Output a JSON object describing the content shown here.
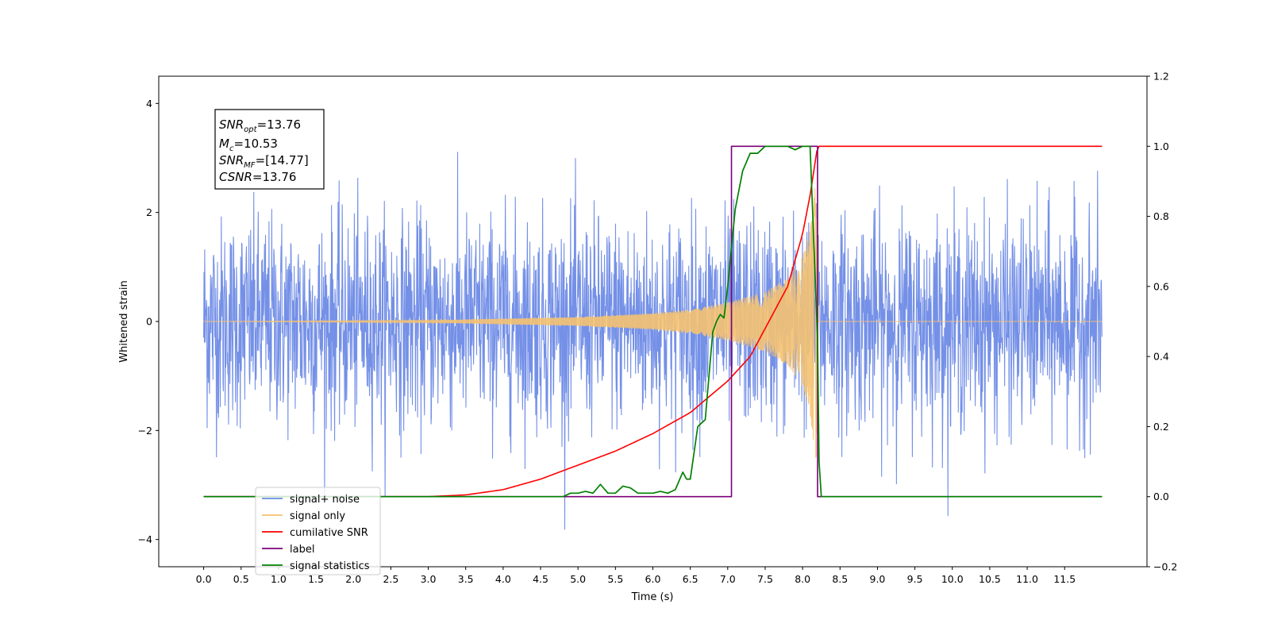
{
  "chart_data": {
    "type": "line",
    "xlabel": "Time (s)",
    "ylabel_left": "Whitened strain",
    "ylabel_right": "",
    "xlim": [
      -0.6,
      12.6
    ],
    "ylim_left": [
      -4.5,
      4.5
    ],
    "ylim_right": [
      -0.2,
      1.2
    ],
    "x_ticks": [
      "0.0",
      "0.5",
      "1.0",
      "1.5",
      "2.0",
      "2.5",
      "3.0",
      "3.5",
      "4.0",
      "4.5",
      "5.0",
      "5.5",
      "6.0",
      "6.5",
      "7.0",
      "7.5",
      "8.0",
      "8.5",
      "9.0",
      "9.5",
      "10.0",
      "10.5",
      "11.0",
      "11.5"
    ],
    "x_tick_values": [
      0,
      0.5,
      1,
      1.5,
      2,
      2.5,
      3,
      3.5,
      4,
      4.5,
      5,
      5.5,
      6,
      6.5,
      7,
      7.5,
      8,
      8.5,
      9,
      9.5,
      10,
      10.5,
      11,
      11.5
    ],
    "y_ticks_left": [
      "−4",
      "−2",
      "0",
      "2",
      "4"
    ],
    "y_tick_values_left": [
      -4,
      -2,
      0,
      2,
      4
    ],
    "y_ticks_right": [
      "−0.2",
      "0.0",
      "0.2",
      "0.4",
      "0.6",
      "0.8",
      "1.0",
      "1.2"
    ],
    "y_tick_values_right": [
      -0.2,
      0,
      0.2,
      0.4,
      0.6,
      0.8,
      1.0,
      1.2
    ],
    "grid": false,
    "legend_position": "lower-left",
    "annotation": {
      "snr_opt_base": "SNR",
      "snr_opt_sub": "opt",
      "snr_opt_value": "=13.76",
      "mc_base": "M",
      "mc_sub": "c",
      "mc_value": "=10.53",
      "snr_mf_base": "SNR",
      "snr_mf_sub": "MF",
      "snr_mf_value": "=[14.77]",
      "csnr_base": "CSNR",
      "csnr_value": "=13.76"
    },
    "series": [
      {
        "name": "signal+ noise",
        "axis": "left",
        "color": "#6d8ae6",
        "description_values": "noise band",
        "x_start": 0.0,
        "x_end": 12.0,
        "noise_sigma": 1.0,
        "noise_max": 4.1
      },
      {
        "name": "signal only",
        "axis": "left",
        "color": "#f5c271",
        "x_start": 0.0,
        "x_end": 12.0,
        "merger_time": 8.2,
        "envelope": {
          "x": [
            0,
            3,
            5,
            6,
            6.5,
            7,
            7.5,
            7.8,
            8.0,
            8.1,
            8.18,
            8.2,
            8.21,
            12.0
          ],
          "y": [
            0.0,
            0.02,
            0.08,
            0.15,
            0.22,
            0.35,
            0.55,
            0.8,
            1.2,
            1.7,
            2.6,
            1.5,
            0.0,
            0.0
          ]
        }
      },
      {
        "name": "cumilative SNR",
        "axis": "right",
        "color": "#ff0000",
        "x": [
          0,
          3,
          3.5,
          4,
          4.5,
          5,
          5.5,
          6,
          6.5,
          7,
          7.3,
          7.6,
          7.8,
          8.0,
          8.1,
          8.2,
          12.0
        ],
        "y": [
          0,
          0,
          0.005,
          0.02,
          0.05,
          0.09,
          0.13,
          0.18,
          0.24,
          0.33,
          0.4,
          0.52,
          0.6,
          0.75,
          0.86,
          1.0,
          1.0
        ]
      },
      {
        "name": "label",
        "axis": "right",
        "color": "#7a007a",
        "x": [
          0,
          7.05,
          7.05,
          8.2,
          8.2,
          12.0
        ],
        "y": [
          0,
          0,
          1,
          1,
          0,
          0
        ]
      },
      {
        "name": "signal statistics",
        "axis": "right",
        "color": "#008000",
        "x": [
          0,
          4.8,
          4.9,
          5.0,
          5.1,
          5.2,
          5.3,
          5.4,
          5.5,
          5.6,
          5.7,
          5.8,
          5.9,
          6.0,
          6.1,
          6.2,
          6.3,
          6.4,
          6.45,
          6.5,
          6.6,
          6.7,
          6.8,
          6.85,
          6.9,
          6.95,
          7.0,
          7.1,
          7.2,
          7.3,
          7.4,
          7.5,
          7.6,
          7.7,
          7.8,
          7.9,
          8.0,
          8.1,
          8.2,
          8.22,
          8.25,
          12.0
        ],
        "y": [
          0,
          0,
          0.01,
          0.01,
          0.015,
          0.01,
          0.035,
          0.01,
          0.01,
          0.03,
          0.025,
          0.01,
          0.01,
          0.01,
          0.015,
          0.01,
          0.02,
          0.07,
          0.05,
          0.05,
          0.2,
          0.22,
          0.47,
          0.5,
          0.52,
          0.51,
          0.6,
          0.82,
          0.93,
          0.98,
          0.98,
          1.0,
          1.0,
          1.0,
          1.0,
          0.99,
          1.0,
          1.0,
          0.45,
          0.1,
          0.0,
          0.0
        ]
      }
    ]
  }
}
